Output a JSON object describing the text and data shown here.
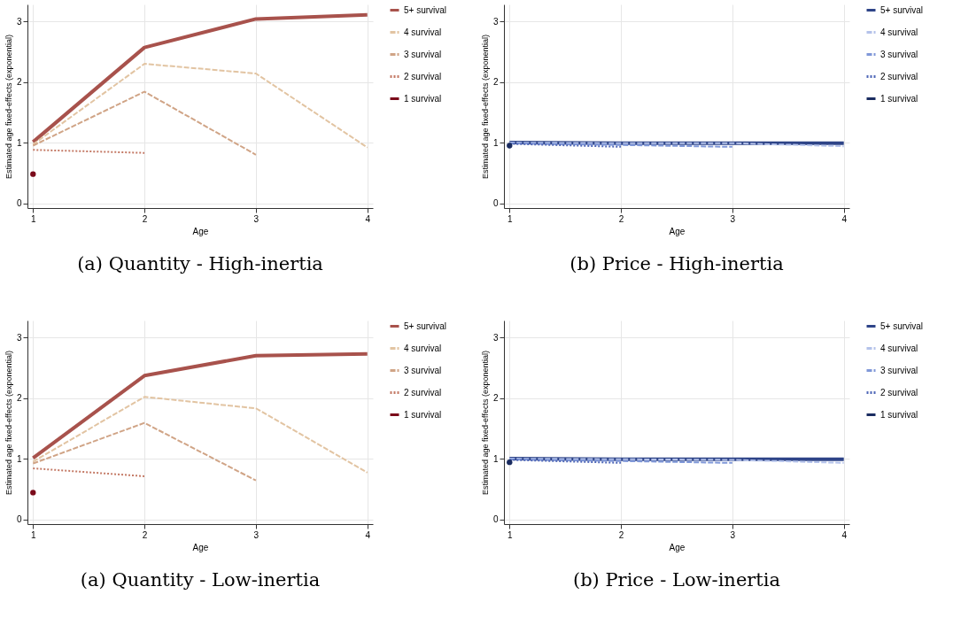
{
  "chart_data": [
    {
      "type": "line",
      "title": "(a) Quantity - High-inertia",
      "xlabel": "Age",
      "ylabel": "Estimated age fixed-effects (exponential)",
      "xlim": [
        0.95,
        4.05
      ],
      "ylim": [
        -0.08,
        3.28
      ],
      "xticks": [
        1,
        2,
        3,
        4
      ],
      "yticks": [
        0,
        1,
        2,
        3
      ],
      "grid": true,
      "legend": "right",
      "series": [
        {
          "name": "5+ survival",
          "color": "#a8524c",
          "line_style": "solid",
          "x": [
            1,
            2,
            3,
            4
          ],
          "values": [
            1.01,
            2.57,
            3.04,
            3.11
          ]
        },
        {
          "name": "4 survival",
          "color": "#e2c4a2",
          "line_style": "dashed",
          "x": [
            1,
            2,
            3,
            4
          ],
          "values": [
            0.97,
            2.3,
            2.14,
            0.92
          ]
        },
        {
          "name": "3 survival",
          "color": "#d0a486",
          "line_style": "dashed",
          "x": [
            1,
            2,
            3
          ],
          "values": [
            0.95,
            1.84,
            0.8
          ]
        },
        {
          "name": "2 survival",
          "color": "#c47a66",
          "line_style": "dotted",
          "x": [
            1,
            2
          ],
          "values": [
            0.88,
            0.83
          ]
        },
        {
          "name": "1 survival",
          "color": "#7a0a1a",
          "type": "scatter",
          "marker": "circle",
          "x": [
            1
          ],
          "values": [
            0.48
          ]
        }
      ]
    },
    {
      "type": "line",
      "title": "(b) Price - High-inertia",
      "xlabel": "Age",
      "ylabel": "Estimated age fixed-effects (exponential)",
      "xlim": [
        0.95,
        4.05
      ],
      "ylim": [
        -0.08,
        3.28
      ],
      "xticks": [
        1,
        2,
        3,
        4
      ],
      "yticks": [
        0,
        1,
        2,
        3
      ],
      "grid": true,
      "legend": "right",
      "series": [
        {
          "name": "5+ survival",
          "color": "#2e4488",
          "line_style": "solid",
          "x": [
            1,
            2,
            3,
            4
          ],
          "values": [
            1.0,
            0.99,
            0.99,
            0.99
          ]
        },
        {
          "name": "4 survival",
          "color": "#b4c2ea",
          "line_style": "dashed",
          "x": [
            1,
            2,
            3,
            4
          ],
          "values": [
            1.0,
            0.99,
            0.99,
            0.94
          ]
        },
        {
          "name": "3 survival",
          "color": "#8098d8",
          "line_style": "dashed",
          "x": [
            1,
            2,
            3
          ],
          "values": [
            0.99,
            0.96,
            0.93
          ]
        },
        {
          "name": "2 survival",
          "color": "#5068b8",
          "line_style": "dotted",
          "x": [
            1,
            2
          ],
          "values": [
            0.98,
            0.93
          ]
        },
        {
          "name": "1 survival",
          "color": "#1a2c60",
          "type": "scatter",
          "marker": "circle",
          "x": [
            1
          ],
          "values": [
            0.95
          ]
        }
      ]
    },
    {
      "type": "line",
      "title": "(a) Quantity - Low-inertia",
      "xlabel": "Age",
      "ylabel": "Estimated age fixed-effects (exponential)",
      "xlim": [
        0.95,
        4.05
      ],
      "ylim": [
        -0.08,
        3.28
      ],
      "xticks": [
        1,
        2,
        3,
        4
      ],
      "yticks": [
        0,
        1,
        2,
        3
      ],
      "grid": true,
      "legend": "right",
      "series": [
        {
          "name": "5+ survival",
          "color": "#a8524c",
          "line_style": "solid",
          "x": [
            1,
            2,
            3,
            4
          ],
          "values": [
            1.01,
            2.37,
            2.7,
            2.73
          ]
        },
        {
          "name": "4 survival",
          "color": "#e2c4a2",
          "line_style": "dashed",
          "x": [
            1,
            2,
            3,
            4
          ],
          "values": [
            0.95,
            2.02,
            1.83,
            0.77
          ]
        },
        {
          "name": "3 survival",
          "color": "#d0a486",
          "line_style": "dashed",
          "x": [
            1,
            2,
            3
          ],
          "values": [
            0.92,
            1.59,
            0.64
          ]
        },
        {
          "name": "2 survival",
          "color": "#c47a66",
          "line_style": "dotted",
          "x": [
            1,
            2
          ],
          "values": [
            0.84,
            0.71
          ]
        },
        {
          "name": "1 survival",
          "color": "#7a0a1a",
          "type": "scatter",
          "marker": "circle",
          "x": [
            1
          ],
          "values": [
            0.44
          ]
        }
      ]
    },
    {
      "type": "line",
      "title": "(b) Price - Low-inertia",
      "xlabel": "Age",
      "ylabel": "Estimated age fixed-effects (exponential)",
      "xlim": [
        0.95,
        4.05
      ],
      "ylim": [
        -0.08,
        3.28
      ],
      "xticks": [
        1,
        2,
        3,
        4
      ],
      "yticks": [
        0,
        1,
        2,
        3
      ],
      "grid": true,
      "legend": "right",
      "series": [
        {
          "name": "5+ survival",
          "color": "#2e4488",
          "line_style": "solid",
          "x": [
            1,
            2,
            3,
            4
          ],
          "values": [
            1.0,
            0.99,
            0.99,
            0.99
          ]
        },
        {
          "name": "4 survival",
          "color": "#b4c2ea",
          "line_style": "dashed",
          "x": [
            1,
            2,
            3,
            4
          ],
          "values": [
            1.0,
            0.99,
            0.98,
            0.93
          ]
        },
        {
          "name": "3 survival",
          "color": "#8098d8",
          "line_style": "dashed",
          "x": [
            1,
            2,
            3
          ],
          "values": [
            0.99,
            0.96,
            0.93
          ]
        },
        {
          "name": "2 survival",
          "color": "#5068b8",
          "line_style": "dotted",
          "x": [
            1,
            2
          ],
          "values": [
            0.98,
            0.93
          ]
        },
        {
          "name": "1 survival",
          "color": "#1a2c60",
          "type": "scatter",
          "marker": "circle",
          "x": [
            1
          ],
          "values": [
            0.94
          ]
        }
      ]
    }
  ]
}
